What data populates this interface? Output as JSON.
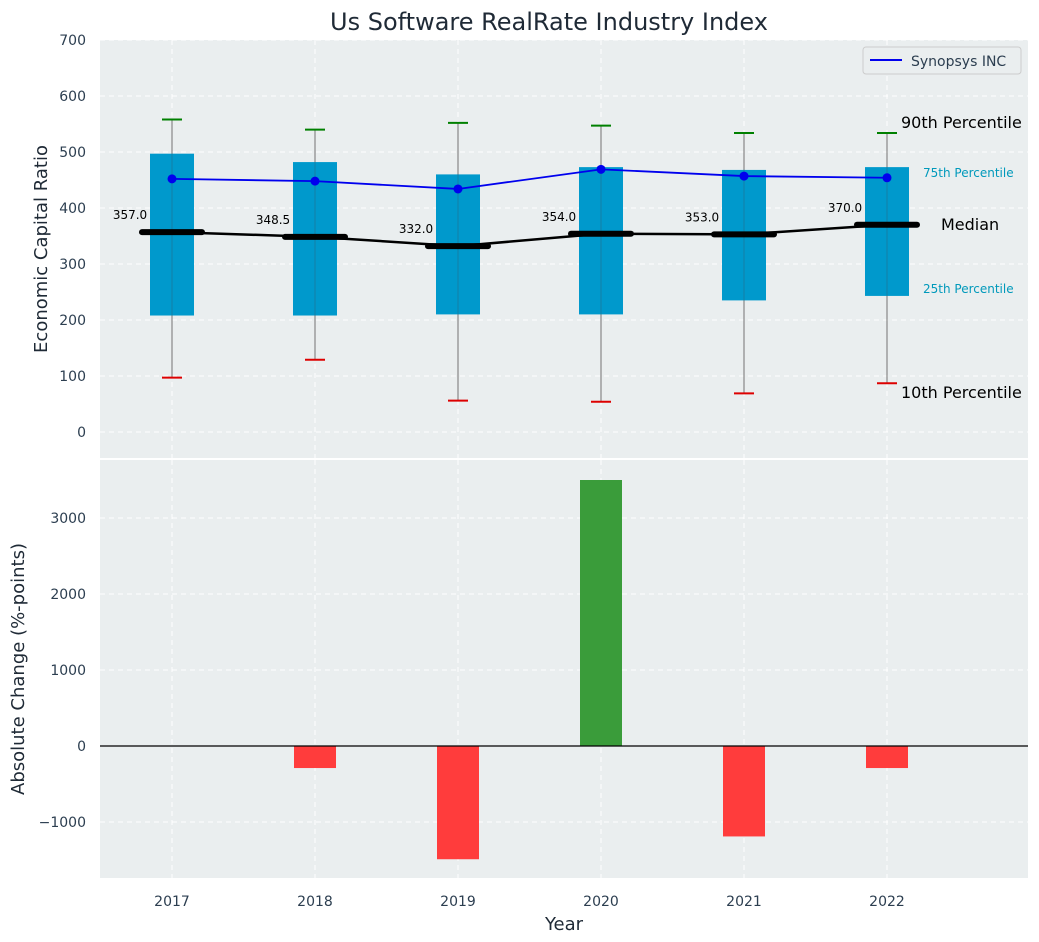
{
  "chart_data": [
    {
      "type": "box",
      "title": "Us Software RealRate Industry Index",
      "ylabel": "Economic Capital Ratio",
      "xlabel": "",
      "ylim": [
        -50,
        700
      ],
      "yticks": [
        0,
        100,
        200,
        300,
        400,
        500,
        600,
        700
      ],
      "grid": true,
      "categories": [
        "2017",
        "2018",
        "2019",
        "2020",
        "2021",
        "2022"
      ],
      "p10": [
        97,
        129,
        56,
        54,
        69,
        87
      ],
      "p25": [
        208,
        208,
        210,
        210,
        235,
        243
      ],
      "median": [
        357.0,
        348.5,
        332.0,
        354.0,
        353.0,
        370.0
      ],
      "median_labels": [
        "357.0",
        "348.5",
        "332.0",
        "354.0",
        "353.0",
        "370.0"
      ],
      "p75": [
        497,
        482,
        460,
        473,
        468,
        473
      ],
      "p90": [
        558,
        540,
        552,
        547,
        534,
        534
      ],
      "company_series": {
        "name": "Synopsys INC",
        "values": [
          452,
          448,
          434,
          469,
          457,
          454
        ]
      },
      "legend": {
        "label": "Synopsys INC",
        "placement": "top-right"
      },
      "annotations": {
        "p90": "90th Percentile",
        "p75": "75th Percentile",
        "median": "Median",
        "p25": "25th Percentile",
        "p10": "10th Percentile"
      },
      "colors": {
        "box": "#0099cc",
        "company": "#0000ee",
        "median": "#000000",
        "p90_cap": "#008000",
        "p10_cap": "#dd0000",
        "whisker": "#888888",
        "annot_small": "#0099bb",
        "background": "#eaeeef"
      }
    },
    {
      "type": "bar",
      "ylabel": "Absolute Change (%-points)",
      "xlabel": "Year",
      "ylim": [
        -1720,
        3700
      ],
      "yticks": [
        -1000,
        0,
        1000,
        2000,
        3000
      ],
      "ytick_labels": [
        "−1000",
        "0",
        "1000",
        "2000",
        "3000"
      ],
      "grid": true,
      "categories": [
        "2017",
        "2018",
        "2019",
        "2020",
        "2021",
        "2022"
      ],
      "values": [
        0,
        -290,
        -1490,
        3500,
        -1190,
        -290
      ],
      "colors": {
        "positive": "#3a9c3a",
        "negative": "#ff3c3c",
        "zero_line": "#000000"
      }
    }
  ]
}
